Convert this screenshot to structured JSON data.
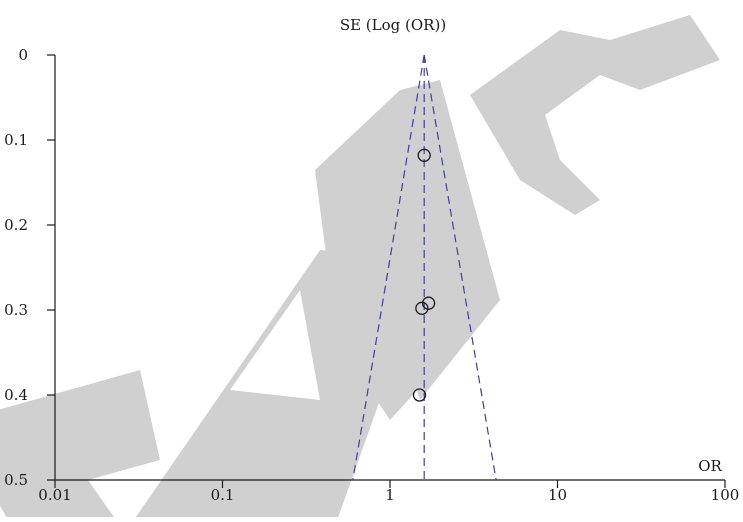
{
  "chart_data": {
    "type": "scatter",
    "title": "",
    "xlabel": "OR",
    "ylabel": "SE (Log (OR))",
    "x_scale": "log",
    "xlim": [
      0.01,
      100
    ],
    "ylim": [
      0,
      0.5
    ],
    "y_inverted": true,
    "x_ticks": [
      "0.01",
      "0.1",
      "1",
      "10",
      "100"
    ],
    "y_ticks": [
      "0",
      "0.1",
      "0.2",
      "0.3",
      "0.4",
      "0.5"
    ],
    "grid": false,
    "legend": "none",
    "points": [
      {
        "x": 1.6,
        "y": 0.118
      },
      {
        "x": 1.7,
        "y": 0.292
      },
      {
        "x": 1.55,
        "y": 0.298
      },
      {
        "x": 1.5,
        "y": 0.4
      }
    ],
    "pooled_or": 1.6,
    "funnel_bounds": {
      "at_se_0": 1.6,
      "left_at_max_se": 0.6,
      "right_at_max_se": 4.3
    },
    "watermark": "RETRACTED",
    "colors": {
      "axis": "#1a1a1a",
      "points": "#1a1a1a",
      "funnel_lines": "#3f3fa0",
      "watermark": "#d0d0d0"
    }
  }
}
